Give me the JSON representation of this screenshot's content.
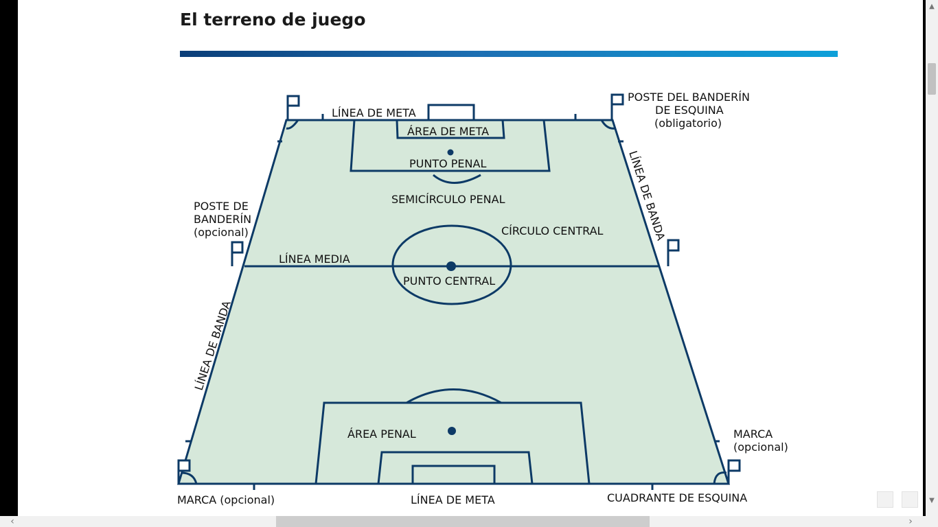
{
  "page": {
    "title": "El terreno de juego"
  },
  "labels": {
    "linea_meta_top": "LÍNEA DE META",
    "area_meta": "ÁREA DE META",
    "punto_penal": "PUNTO PENAL",
    "semicirculo_penal": "SEMICÍRCULO PENAL",
    "circulo_central": "CÍRCULO CENTRAL",
    "linea_media": "LÍNEA MEDIA",
    "punto_central": "PUNTO CENTRAL",
    "area_penal": "ÁREA PENAL",
    "linea_banda_left": "LÍNEA DE BANDA",
    "linea_banda_right": "LÍNEA DE BANDA",
    "poste_esquina": [
      "POSTE DEL BANDERÍN",
      "DE ESQUINA",
      "(obligatorio)"
    ],
    "poste_opcional": [
      "POSTE DE",
      "BANDERÍN",
      "(opcional)"
    ],
    "marca_right": [
      "MARCA",
      "(opcional)"
    ],
    "marca_bottom": "MARCA (opcional)",
    "linea_meta_bottom": "LÍNEA DE META",
    "cuadrante_esquina": "CUADRANTE DE ESQUINA"
  },
  "colors": {
    "field_fill": "#d6e8da",
    "line": "#0d3a66",
    "title_bar_start": "#0b3e78",
    "title_bar_end": "#0ea0d9"
  },
  "icons": {
    "scroll_up": "▲",
    "scroll_down": "▼",
    "scroll_left": "‹",
    "scroll_right": "›"
  }
}
